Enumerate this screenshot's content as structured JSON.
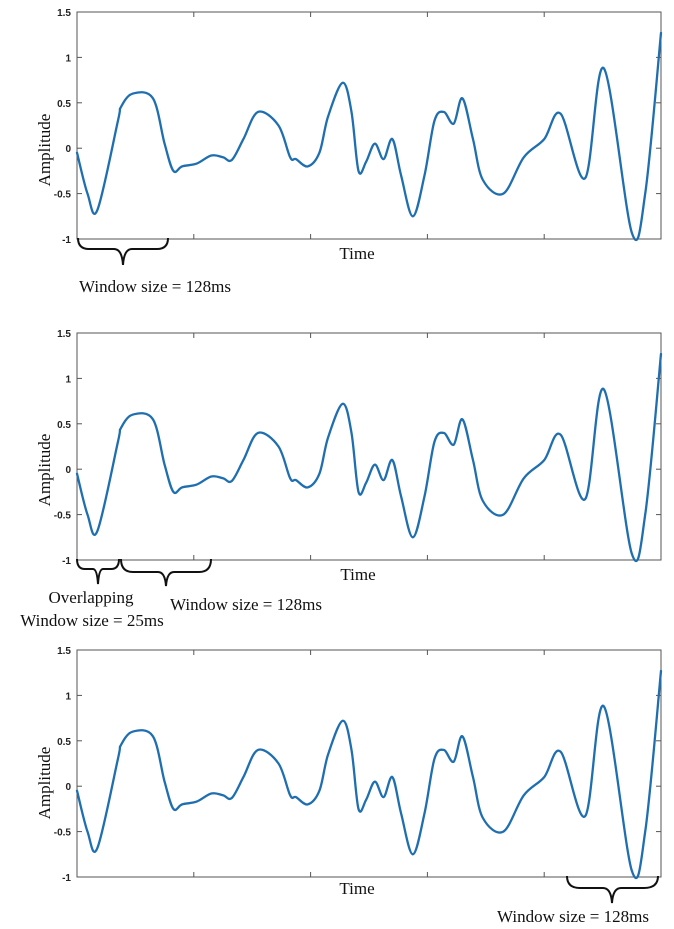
{
  "colors": {
    "signal": "#1f6fb0",
    "axis": "#555555",
    "text": "#111111"
  },
  "chart_data": [
    {
      "type": "line",
      "title": "",
      "xlabel": "Time",
      "ylabel": "Amplitude",
      "ylim": [
        -1,
        1.5
      ],
      "xlim": [
        0,
        1
      ],
      "yticks": [
        "1.5",
        "1",
        "0.5",
        "0",
        "-0.5",
        "-1"
      ],
      "grid": false,
      "series": [
        {
          "x": [
            0.0,
            0.018,
            0.035,
            0.07,
            0.075,
            0.095,
            0.13,
            0.15,
            0.165,
            0.18,
            0.205,
            0.23,
            0.25,
            0.265,
            0.285,
            0.31,
            0.345,
            0.365,
            0.375,
            0.395,
            0.415,
            0.43,
            0.455,
            0.47,
            0.482,
            0.495,
            0.51,
            0.525,
            0.54,
            0.555,
            0.575,
            0.595,
            0.612,
            0.628,
            0.645,
            0.66,
            0.678,
            0.695,
            0.73,
            0.765,
            0.8,
            0.828,
            0.87,
            0.902,
            0.95,
            0.973,
            1.0
          ],
          "values": [
            -0.05,
            -0.5,
            -0.68,
            0.3,
            0.45,
            0.6,
            0.55,
            0.05,
            -0.25,
            -0.2,
            -0.17,
            -0.08,
            -0.1,
            -0.13,
            0.1,
            0.4,
            0.25,
            -0.1,
            -0.12,
            -0.2,
            -0.05,
            0.35,
            0.72,
            0.4,
            -0.25,
            -0.15,
            0.05,
            -0.12,
            0.1,
            -0.3,
            -0.75,
            -0.3,
            0.3,
            0.4,
            0.27,
            0.55,
            0.1,
            -0.35,
            -0.5,
            -0.1,
            0.1,
            0.38,
            -0.33,
            0.88,
            -0.93,
            -0.5,
            1.27
          ]
        }
      ]
    },
    {
      "type": "line",
      "title": "",
      "xlabel": "Time",
      "ylabel": "Amplitude",
      "ylim": [
        -1,
        1.5
      ],
      "xlim": [
        0,
        1
      ],
      "yticks": [
        "1.5",
        "1",
        "0.5",
        "0",
        "-0.5",
        "-1"
      ],
      "grid": false,
      "series": [
        {
          "x": [
            0.0,
            0.018,
            0.035,
            0.07,
            0.075,
            0.095,
            0.13,
            0.15,
            0.165,
            0.18,
            0.205,
            0.23,
            0.25,
            0.265,
            0.285,
            0.31,
            0.345,
            0.365,
            0.375,
            0.395,
            0.415,
            0.43,
            0.455,
            0.47,
            0.482,
            0.495,
            0.51,
            0.525,
            0.54,
            0.555,
            0.575,
            0.595,
            0.612,
            0.628,
            0.645,
            0.66,
            0.678,
            0.695,
            0.73,
            0.765,
            0.8,
            0.828,
            0.87,
            0.902,
            0.95,
            0.973,
            1.0
          ],
          "values": [
            -0.05,
            -0.5,
            -0.68,
            0.3,
            0.45,
            0.6,
            0.55,
            0.05,
            -0.25,
            -0.2,
            -0.17,
            -0.08,
            -0.1,
            -0.13,
            0.1,
            0.4,
            0.25,
            -0.1,
            -0.12,
            -0.2,
            -0.05,
            0.35,
            0.72,
            0.4,
            -0.25,
            -0.15,
            0.05,
            -0.12,
            0.1,
            -0.3,
            -0.75,
            -0.3,
            0.3,
            0.4,
            0.27,
            0.55,
            0.1,
            -0.35,
            -0.5,
            -0.1,
            0.1,
            0.38,
            -0.33,
            0.88,
            -0.93,
            -0.5,
            1.27
          ]
        }
      ]
    },
    {
      "type": "line",
      "title": "",
      "xlabel": "Time",
      "ylabel": "Amplitude",
      "ylim": [
        -1,
        1.5
      ],
      "xlim": [
        0,
        1
      ],
      "yticks": [
        "1.5",
        "1",
        "0.5",
        "0",
        "-0.5",
        "-1"
      ],
      "grid": false,
      "series": [
        {
          "x": [
            0.0,
            0.018,
            0.035,
            0.07,
            0.075,
            0.095,
            0.13,
            0.15,
            0.165,
            0.18,
            0.205,
            0.23,
            0.25,
            0.265,
            0.285,
            0.31,
            0.345,
            0.365,
            0.375,
            0.395,
            0.415,
            0.43,
            0.455,
            0.47,
            0.482,
            0.495,
            0.51,
            0.525,
            0.54,
            0.555,
            0.575,
            0.595,
            0.612,
            0.628,
            0.645,
            0.66,
            0.678,
            0.695,
            0.73,
            0.765,
            0.8,
            0.828,
            0.87,
            0.902,
            0.95,
            0.973,
            1.0
          ],
          "values": [
            -0.05,
            -0.5,
            -0.68,
            0.3,
            0.45,
            0.6,
            0.55,
            0.05,
            -0.25,
            -0.2,
            -0.17,
            -0.08,
            -0.1,
            -0.13,
            0.1,
            0.4,
            0.25,
            -0.1,
            -0.12,
            -0.2,
            -0.05,
            0.35,
            0.72,
            0.4,
            -0.25,
            -0.15,
            0.05,
            -0.12,
            0.1,
            -0.3,
            -0.75,
            -0.3,
            0.3,
            0.4,
            0.27,
            0.55,
            0.1,
            -0.35,
            -0.5,
            -0.1,
            0.1,
            0.38,
            -0.33,
            0.88,
            -0.93,
            -0.5,
            1.27
          ]
        }
      ]
    }
  ],
  "annotations": {
    "panel1": {
      "window_label": "Window size = 128ms"
    },
    "panel2": {
      "overlap_label": "Overlapping",
      "overlap_window_label": "Window size = 25ms",
      "window_label": "Window size = 128ms"
    },
    "panel3": {
      "window_label": "Window size = 128ms"
    }
  }
}
